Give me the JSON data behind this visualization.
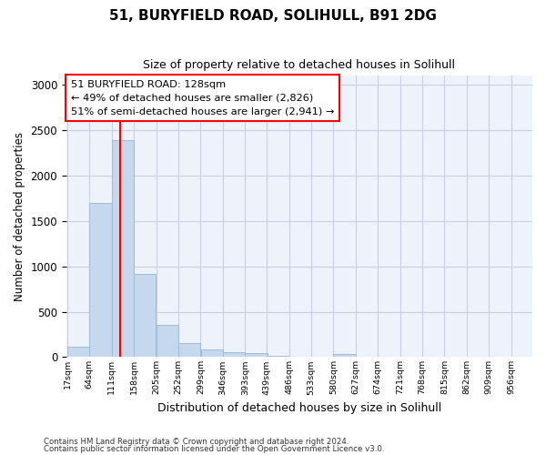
{
  "title1": "51, BURYFIELD ROAD, SOLIHULL, B91 2DG",
  "title2": "Size of property relative to detached houses in Solihull",
  "xlabel": "Distribution of detached houses by size in Solihull",
  "ylabel": "Number of detached properties",
  "annotation_line1": "51 BURYFIELD ROAD: 128sqm",
  "annotation_line2": "← 49% of detached houses are smaller (2,826)",
  "annotation_line3": "51% of semi-detached houses are larger (2,941) →",
  "footer1": "Contains HM Land Registry data © Crown copyright and database right 2024.",
  "footer2": "Contains public sector information licensed under the Open Government Licence v3.0.",
  "bar_color": "#c5d8ee",
  "bar_edge_color": "#a0bcd8",
  "vline_color": "red",
  "vline_x": 128,
  "annotation_box_color": "red",
  "annotation_box_fill": "white",
  "background_color": "#eef2fb",
  "grid_color": "#c8d0e0",
  "bin_edges": [
    17,
    64,
    111,
    158,
    205,
    252,
    299,
    346,
    393,
    439,
    486,
    533,
    580,
    627,
    674,
    721,
    768,
    815,
    862,
    909,
    956
  ],
  "bin_labels": [
    "17sqm",
    "64sqm",
    "111sqm",
    "158sqm",
    "205sqm",
    "252sqm",
    "299sqm",
    "346sqm",
    "393sqm",
    "439sqm",
    "486sqm",
    "533sqm",
    "580sqm",
    "627sqm",
    "674sqm",
    "721sqm",
    "768sqm",
    "815sqm",
    "862sqm",
    "909sqm",
    "956sqm"
  ],
  "bar_heights": [
    110,
    1700,
    2390,
    920,
    350,
    150,
    80,
    55,
    40,
    10,
    5,
    5,
    35,
    5,
    5,
    5,
    5,
    5,
    5,
    5
  ],
  "ylim": [
    0,
    3100
  ],
  "yticks": [
    0,
    500,
    1000,
    1500,
    2000,
    2500,
    3000
  ]
}
